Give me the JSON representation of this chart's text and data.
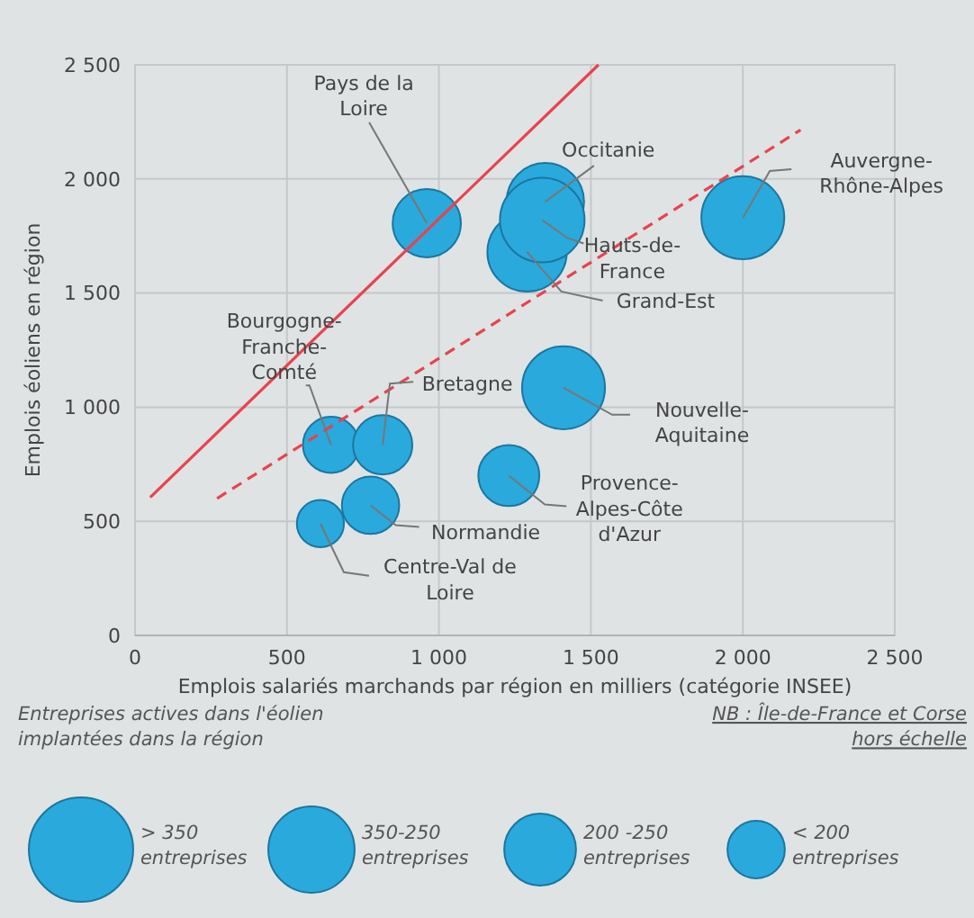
{
  "chart_data": {
    "type": "bubble",
    "xlabel": "Emplois salariés marchands par région en milliers (catégorie INSEE)",
    "ylabel": "Emplois éoliens en région",
    "legend_title": "Entreprises actives dans l'éolien implantées dans la région",
    "annotations": [
      "NB : Île-de-France et Corse hors échelle"
    ],
    "xlim": [
      0,
      2500
    ],
    "ylim": [
      0,
      2500
    ],
    "xticks": [
      0,
      {
        "value": 500,
        "label": "500"
      },
      {
        "value": 1000,
        "label": "1 000"
      },
      {
        "value": 1500,
        "label": "1 500"
      },
      {
        "value": 2000,
        "label": "2 000"
      },
      {
        "value": 2500,
        "label": "2 500"
      }
    ],
    "yticks": [
      0,
      {
        "value": 500,
        "label": "500"
      },
      {
        "value": 1000,
        "label": "1 000"
      },
      {
        "value": 1500,
        "label": "1 500"
      },
      {
        "value": 2000,
        "label": "2 000"
      },
      {
        "value": 2500,
        "label": "2 500"
      }
    ],
    "grid": true,
    "size_legend": [
      {
        "value": 1.52,
        "label": "> 350 entreprises"
      },
      {
        "value": 1.04,
        "label": "350-250 entreprises"
      },
      {
        "value": 0.72,
        "label": "200 -250 entreprises"
      },
      {
        "value": 0.46,
        "label": "< 200 entreprises"
      }
    ],
    "series": [
      {
        "name": "Pays de la Loire",
        "color": "#2aa9dc",
        "x": [
          960
        ],
        "values": [
          1806
        ],
        "sizes": [
          0.65
        ]
      },
      {
        "name": "Grand-Est",
        "color": "#2aa9dc",
        "x": [
          1290
        ],
        "values": [
          1680
        ],
        "sizes": [
          0.88
        ]
      },
      {
        "name": "Occitanie",
        "color": "#2aa9dc",
        "x": [
          1350
        ],
        "values": [
          1900
        ],
        "sizes": [
          0.84
        ]
      },
      {
        "name": "Hauts-de-France",
        "color": "#2aa9dc",
        "x": [
          1340
        ],
        "values": [
          1820
        ],
        "sizes": [
          1
        ]
      },
      {
        "name": "Auvergne-Rhône-Alpes",
        "color": "#2aa9dc",
        "x": [
          2000
        ],
        "values": [
          1830
        ],
        "sizes": [
          0.96
        ]
      },
      {
        "name": "Bourgogne-Franche-Comté",
        "color": "#2aa9dc",
        "x": [
          645
        ],
        "values": [
          835
        ],
        "sizes": [
          0.44
        ]
      },
      {
        "name": "Bretagne",
        "color": "#2aa9dc",
        "x": [
          815
        ],
        "values": [
          835
        ],
        "sizes": [
          0.49
        ]
      },
      {
        "name": "Nouvelle-Aquitaine",
        "color": "#2aa9dc",
        "x": [
          1410
        ],
        "values": [
          1085
        ],
        "sizes": [
          0.96
        ]
      },
      {
        "name": "Provence-Alpes-Côte d'Azur",
        "color": "#2aa9dc",
        "x": [
          1230
        ],
        "values": [
          700
        ],
        "sizes": [
          0.52
        ]
      },
      {
        "name": "Normandie",
        "color": "#2aa9dc",
        "x": [
          775
        ],
        "values": [
          570
        ],
        "sizes": [
          0.46
        ]
      },
      {
        "name": "Centre-Val de Loire",
        "color": "#2aa9dc",
        "x": [
          610
        ],
        "values": [
          490
        ],
        "sizes": [
          0.31
        ]
      },
      {
        "type": "line",
        "color": "#e8434f",
        "line_style": "solid",
        "marker": "none",
        "x": [
          50,
          1525
        ],
        "values": [
          605,
          2500
        ]
      },
      {
        "type": "line",
        "color": "#e8434f",
        "line_style": "dashed",
        "marker": "none",
        "x": [
          270,
          2190
        ],
        "values": [
          600,
          2215
        ]
      }
    ]
  }
}
